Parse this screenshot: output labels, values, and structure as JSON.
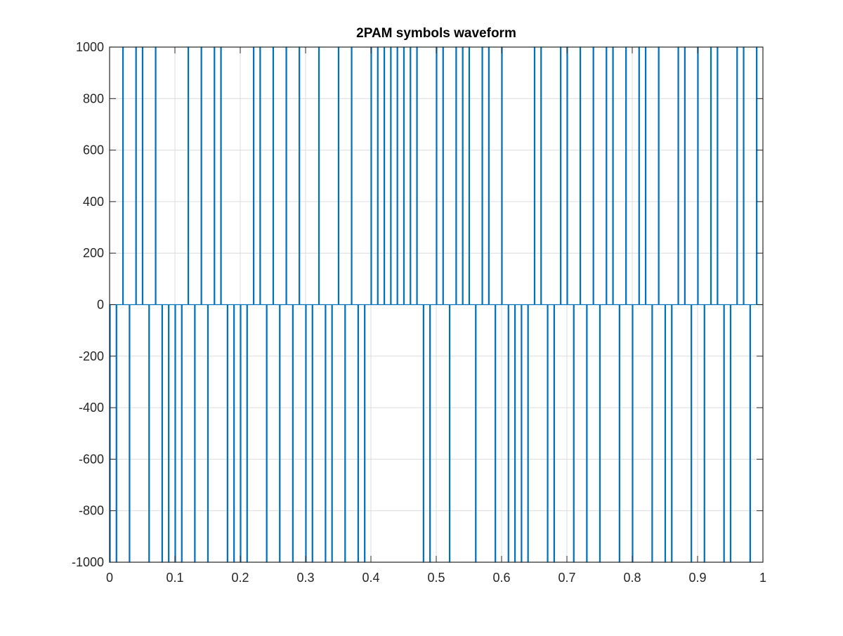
{
  "chart_data": {
    "type": "line",
    "title": "2PAM symbols waveform",
    "xlabel": "",
    "ylabel": "",
    "xlim": [
      0,
      1
    ],
    "ylim": [
      -1000,
      1000
    ],
    "grid": true,
    "legend": "none",
    "x_ticks": [
      "0",
      "0.1",
      "0.2",
      "0.3",
      "0.4",
      "0.5",
      "0.6",
      "0.7",
      "0.8",
      "0.9",
      "1"
    ],
    "y_ticks": [
      "-1000",
      "-800",
      "-600",
      "-400",
      "-200",
      "0",
      "200",
      "400",
      "600",
      "800",
      "1000"
    ],
    "x_tick_values": [
      0,
      0.1,
      0.2,
      0.3,
      0.4,
      0.5,
      0.6,
      0.7,
      0.8,
      0.9,
      1
    ],
    "y_tick_values": [
      -1000,
      -800,
      -600,
      -400,
      -200,
      0,
      200,
      400,
      600,
      800,
      1000
    ],
    "series": [
      {
        "color": "#0072bd",
        "symbol_period": 0.01,
        "pulse_amplitude": 1000,
        "symbols": [
          -1,
          -1,
          1,
          -1,
          1,
          1,
          -1,
          1,
          -1,
          -1,
          -1,
          -1,
          1,
          -1,
          1,
          -1,
          1,
          1,
          -1,
          -1,
          -1,
          -1,
          1,
          1,
          -1,
          1,
          -1,
          1,
          -1,
          1,
          -1,
          -1,
          1,
          -1,
          -1,
          1,
          -1,
          1,
          -1,
          -1,
          1,
          1,
          1,
          1,
          1,
          1,
          1,
          1,
          -1,
          -1,
          1,
          1,
          -1,
          1,
          1,
          1,
          -1,
          1,
          1,
          -1,
          1,
          -1,
          -1,
          -1,
          -1,
          1,
          1,
          -1,
          -1,
          1,
          1,
          -1,
          1,
          -1,
          1,
          -1,
          1,
          1,
          -1,
          1,
          -1,
          1,
          1,
          -1,
          1,
          -1,
          -1,
          1,
          1,
          -1,
          1,
          -1,
          1,
          1,
          -1,
          -1,
          1,
          1,
          -1,
          1
        ]
      }
    ]
  },
  "colors": {
    "background": "#ffffff",
    "axes_background": "#ffffff",
    "axes_border": "#262626",
    "grid": "#dcdcdc",
    "line": "#0072bd"
  }
}
